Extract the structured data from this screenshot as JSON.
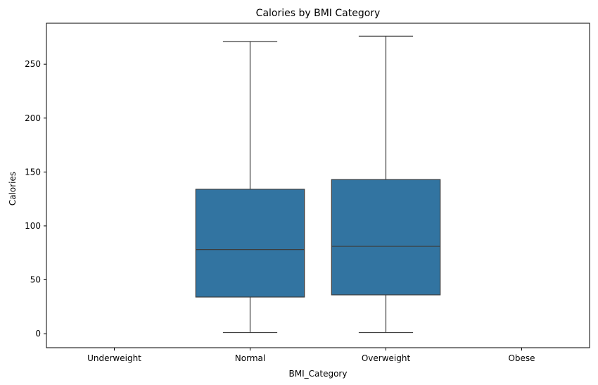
{
  "chart_data": {
    "type": "box",
    "title": "Calories by BMI Category",
    "xlabel": "BMI_Category",
    "ylabel": "Calories",
    "categories": [
      "Underweight",
      "Normal",
      "Overweight",
      "Obese"
    ],
    "boxes": [
      null,
      {
        "min": 1,
        "q1": 34,
        "median": 78,
        "q3": 134,
        "max": 271
      },
      {
        "min": 1,
        "q1": 36,
        "median": 81,
        "q3": 143,
        "max": 276
      },
      null
    ],
    "ylim": [
      -13,
      288
    ],
    "yticks": [
      0,
      50,
      100,
      150,
      200,
      250
    ],
    "grid": false,
    "legend": "none",
    "box_color": "#3274a1",
    "line_color": "#3d3d3d"
  }
}
